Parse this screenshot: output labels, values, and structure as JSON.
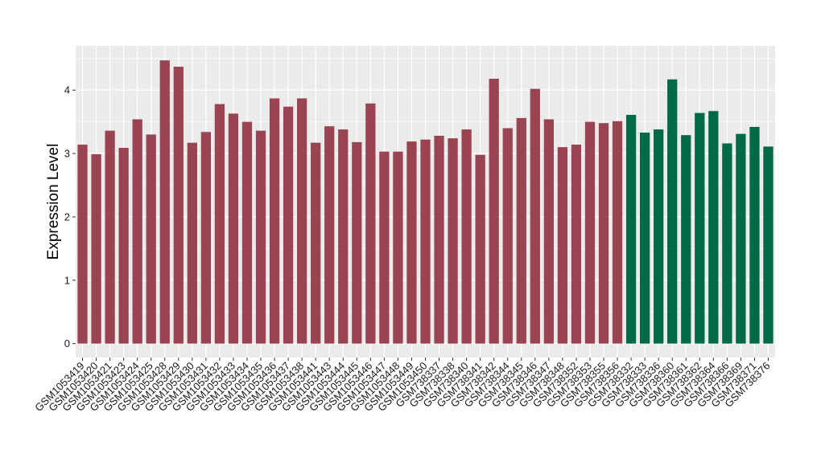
{
  "chart_data": {
    "type": "bar",
    "title": "",
    "xlabel": "",
    "ylabel": "Expression Level",
    "ylim": [
      -0.22,
      4.7
    ],
    "yticks": [
      0,
      1,
      2,
      3,
      4
    ],
    "grid": true,
    "background": "#ebebeb",
    "grid_color": "#ffffff",
    "group_colors": [
      "#9b4451",
      "#006a44"
    ],
    "categories": [
      "GSM1053419",
      "GSM1053420",
      "GSM1053421",
      "GSM1053423",
      "GSM1053424",
      "GSM1053425",
      "GSM1053428",
      "GSM1053429",
      "GSM1053430",
      "GSM1053431",
      "GSM1053432",
      "GSM1053433",
      "GSM1053434",
      "GSM1053435",
      "GSM1053436",
      "GSM1053437",
      "GSM1053438",
      "GSM1053441",
      "GSM1053443",
      "GSM1053444",
      "GSM1053445",
      "GSM1053446",
      "GSM1053447",
      "GSM1053448",
      "GSM1053449",
      "GSM1053450",
      "GSM738337",
      "GSM738338",
      "GSM738340",
      "GSM738341",
      "GSM738342",
      "GSM738344",
      "GSM738345",
      "GSM738346",
      "GSM738347",
      "GSM738348",
      "GSM738352",
      "GSM738353",
      "GSM738355",
      "GSM738356",
      "GSM738332",
      "GSM738333",
      "GSM738336",
      "GSM738360",
      "GSM738361",
      "GSM738362",
      "GSM738364",
      "GSM738366",
      "GSM738369",
      "GSM738371",
      "GSM738376"
    ],
    "values": [
      3.14,
      2.99,
      3.36,
      3.09,
      3.54,
      3.3,
      4.47,
      4.37,
      3.17,
      3.34,
      3.78,
      3.63,
      3.5,
      3.36,
      3.87,
      3.74,
      3.87,
      3.17,
      3.43,
      3.38,
      3.18,
      3.79,
      3.03,
      3.03,
      3.19,
      3.22,
      3.28,
      3.24,
      3.38,
      2.98,
      4.18,
      3.4,
      3.56,
      4.02,
      3.54,
      3.1,
      3.14,
      3.5,
      3.48,
      3.51,
      3.61,
      3.33,
      3.38,
      4.17,
      3.29,
      3.64,
      3.67,
      3.16,
      3.31,
      3.42,
      3.11
    ],
    "groups": [
      0,
      0,
      0,
      0,
      0,
      0,
      0,
      0,
      0,
      0,
      0,
      0,
      0,
      0,
      0,
      0,
      0,
      0,
      0,
      0,
      0,
      0,
      0,
      0,
      0,
      0,
      0,
      0,
      0,
      0,
      0,
      0,
      0,
      0,
      0,
      0,
      0,
      0,
      0,
      0,
      1,
      1,
      1,
      1,
      1,
      1,
      1,
      1,
      1,
      1,
      1
    ]
  }
}
